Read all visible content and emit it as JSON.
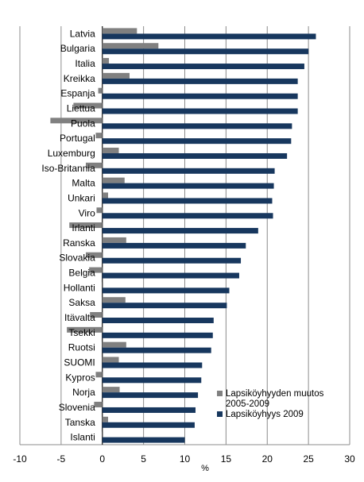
{
  "chart_data": {
    "type": "bar",
    "orientation": "horizontal",
    "xlabel": "%",
    "xlim": [
      -10,
      30
    ],
    "xticks": [
      "-10",
      "-5",
      "0",
      "5",
      "10",
      "15",
      "20",
      "25",
      "30"
    ],
    "grid": "vertical",
    "legend_position": "bottom-right",
    "categories": [
      "Latvia",
      "Bulgaria",
      "Italia",
      "Kreikka",
      "Espanja",
      "Liettua",
      "Puola",
      "Portugal",
      "Luxemburg",
      "Iso-Britannia",
      "Malta",
      "Unkari",
      "Viro",
      "Irlanti",
      "Ranska",
      "Slovakia",
      "Belgia",
      "Hollanti",
      "Saksa",
      "Itävalta",
      "Tsekki",
      "Ruotsi",
      "SUOMI",
      "Kypros",
      "Norja",
      "Slovenia",
      "Tanska",
      "Islanti"
    ],
    "series": [
      {
        "name": "Lapsiköyhyyden muutos 2005-2009",
        "color": "#808080",
        "values": [
          4.2,
          6.8,
          0.8,
          3.3,
          -0.5,
          -3.5,
          -6.3,
          -0.8,
          2.0,
          -2.0,
          2.7,
          0.7,
          -0.7,
          -4.0,
          2.9,
          -2.0,
          -1.6,
          0.1,
          2.8,
          -1.5,
          -4.3,
          2.9,
          2.0,
          -0.8,
          2.1,
          -1.0,
          0.7,
          0.1
        ]
      },
      {
        "name": "Lapsiköyhyys 2009",
        "color": "#17375E",
        "values": [
          25.9,
          25.0,
          24.5,
          23.7,
          23.7,
          23.7,
          23.0,
          22.9,
          22.4,
          20.9,
          20.8,
          20.6,
          20.7,
          18.9,
          17.4,
          16.8,
          16.6,
          15.4,
          15.1,
          13.5,
          13.4,
          13.2,
          12.1,
          12.0,
          11.6,
          11.3,
          11.2,
          10.0
        ]
      }
    ]
  },
  "colors": {
    "grid": "#8c8c8c",
    "frame": "#8c8c8c"
  }
}
